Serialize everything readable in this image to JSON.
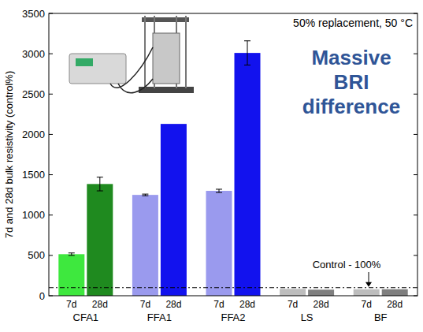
{
  "chart_data": {
    "type": "bar",
    "subtitle": "50% replacement, 50 °C",
    "annotation": "Massive BRI difference",
    "y_label": "7d and 28d bulk resistivity (control%)",
    "categories": [
      "CFA1",
      "FFA1",
      "FFA2",
      "LS",
      "BF"
    ],
    "series": [
      {
        "name": "7d",
        "values": [
          515,
          1250,
          1300,
          85,
          80
        ],
        "errors": [
          15,
          10,
          20,
          null,
          null
        ],
        "colors": [
          "#3ee83e",
          "#9a9aee",
          "#9a9aee",
          "#bdbdbd",
          "#bdbdbd"
        ]
      },
      {
        "name": "28d",
        "values": [
          1385,
          2130,
          3010,
          75,
          80
        ],
        "errors": [
          85,
          null,
          150,
          null,
          null
        ],
        "colors": [
          "#1f8a1f",
          "#1212ee",
          "#1212ee",
          "#7f7f7f",
          "#7f7f7f"
        ]
      }
    ],
    "control": {
      "value": 100,
      "label": "Control - 100%"
    },
    "ylim": [
      0,
      3500
    ],
    "yticks": [
      0,
      500,
      1000,
      1500,
      2000,
      2500,
      3000,
      3500
    ]
  }
}
